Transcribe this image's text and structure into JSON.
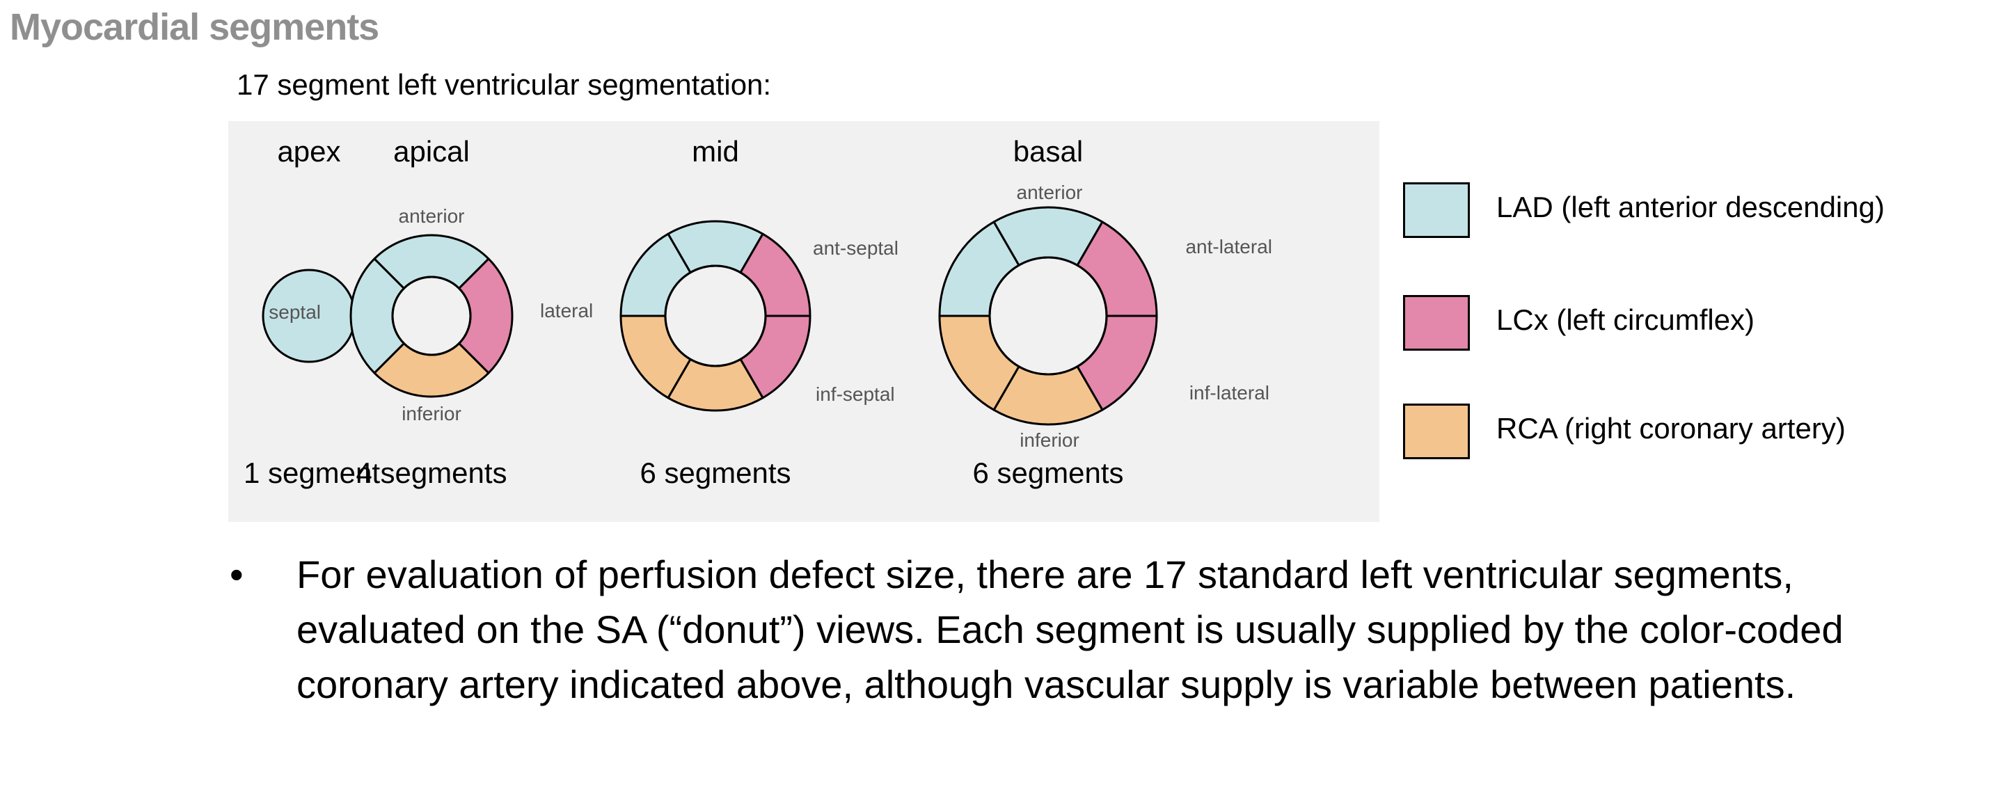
{
  "title": "Myocardial segments",
  "subtitle": "17 segment left ventricular segmentation:",
  "colors": {
    "LAD": "#c4e3e7",
    "LCx": "#e387ab",
    "RCA": "#f4c48e",
    "panel": "#f1f1f1",
    "stroke": "#000000",
    "label": "#555555"
  },
  "diagram": {
    "views": [
      {
        "name": "apex",
        "count_label": "1 segment",
        "segments": [
          "LAD"
        ],
        "labels": []
      },
      {
        "name": "apical",
        "count_label": "4 segments",
        "segments": [
          "LAD",
          "LCx",
          "RCA",
          "LAD"
        ],
        "labels": [
          "anterior",
          "lateral",
          "inferior",
          "septal"
        ]
      },
      {
        "name": "mid",
        "count_label": "6 segments",
        "segments": [
          "LAD",
          "LCx",
          "LCx",
          "RCA",
          "RCA",
          "LAD"
        ],
        "labels": []
      },
      {
        "name": "basal",
        "count_label": "6 segments",
        "segments": [
          "LAD",
          "LCx",
          "LCx",
          "RCA",
          "RCA",
          "LAD"
        ],
        "labels": [
          "anterior",
          "ant-lateral",
          "inf-lateral",
          "inferior",
          "inf-septal",
          "ant-septal"
        ]
      }
    ]
  },
  "legend": [
    {
      "key": "LAD",
      "label": "LAD (left anterior descending)"
    },
    {
      "key": "LCx",
      "label": "LCx (left circumflex)"
    },
    {
      "key": "RCA",
      "label": "RCA (right coronary artery)"
    }
  ],
  "bullet_symbol": "•",
  "paragraph": "For evaluation of perfusion defect size, there are 17 standard left ventricular segments, evaluated on the SA (“donut”) views. Each segment is usually supplied by the color-coded coronary artery indicated above, although vascular supply is variable between patients."
}
